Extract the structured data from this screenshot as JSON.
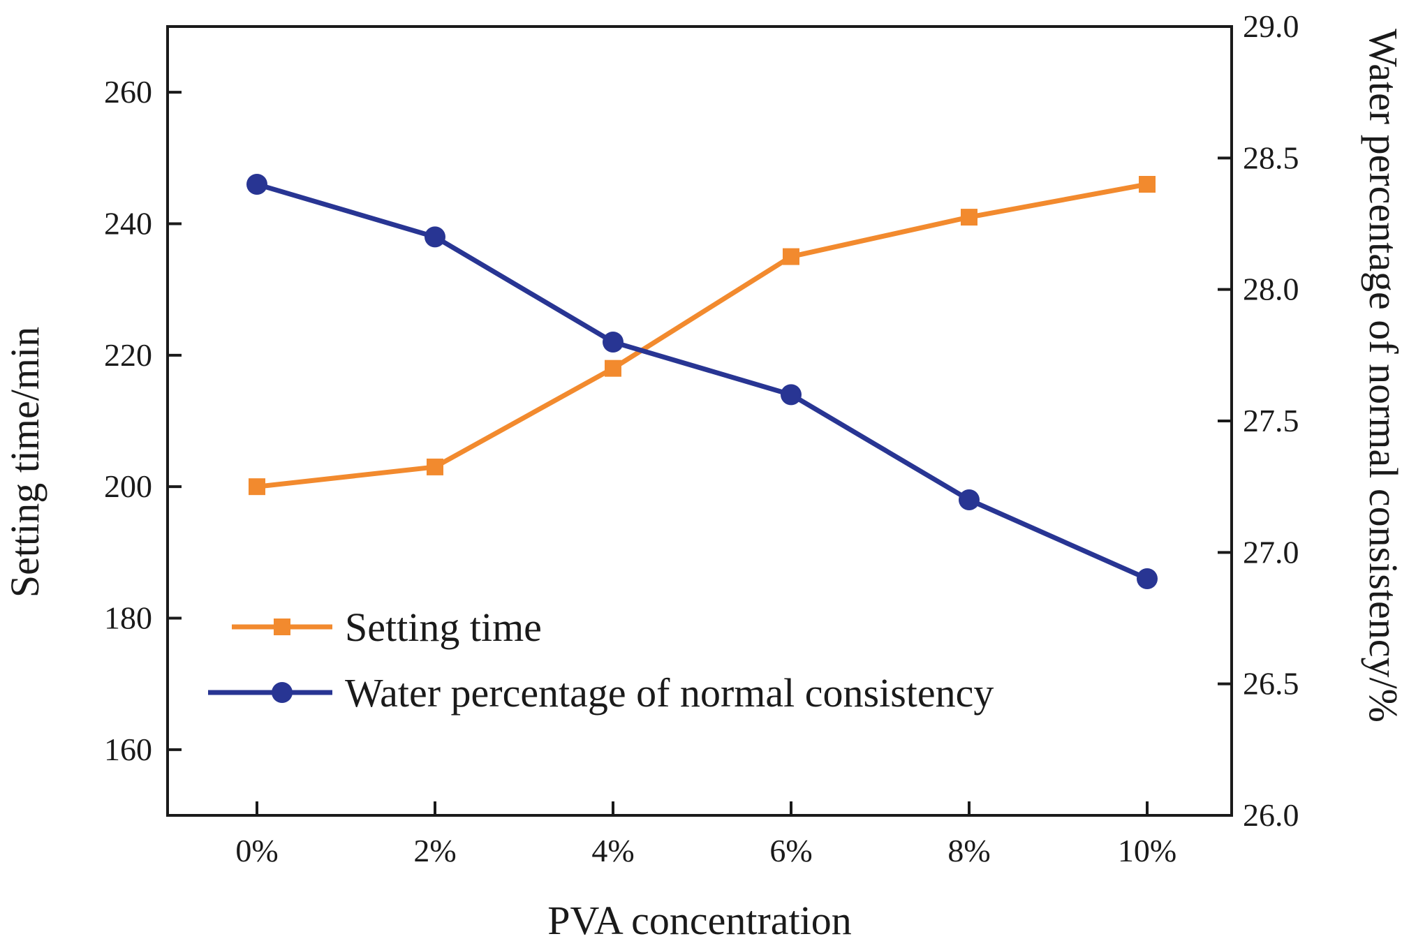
{
  "chart_data": {
    "type": "line",
    "x": [
      "0%",
      "2%",
      "4%",
      "6%",
      "8%",
      "10%"
    ],
    "xlabel": "PVA  concentration",
    "ylabel_left": "Setting time/min",
    "ylabel_right": "Water percentage of normal consistency/%",
    "ylim_left": [
      150,
      270
    ],
    "ylim_right": [
      26.0,
      29.0
    ],
    "yticks_left": [
      160,
      180,
      200,
      220,
      240,
      260
    ],
    "yticks_right": [
      "26.0",
      "26.5",
      "27.0",
      "27.5",
      "28.0",
      "28.5",
      "29.0"
    ],
    "legend_position": "lower-left",
    "grid": false,
    "series": [
      {
        "name": "Setting time",
        "axis": "left",
        "marker": "square",
        "color": "#f28a2e",
        "values": [
          200,
          203,
          218,
          235,
          241,
          246
        ]
      },
      {
        "name": "Water percentage of normal consistency",
        "axis": "right",
        "marker": "circle",
        "color": "#283593",
        "values": [
          28.4,
          28.2,
          27.8,
          27.6,
          27.2,
          26.9
        ]
      }
    ]
  }
}
